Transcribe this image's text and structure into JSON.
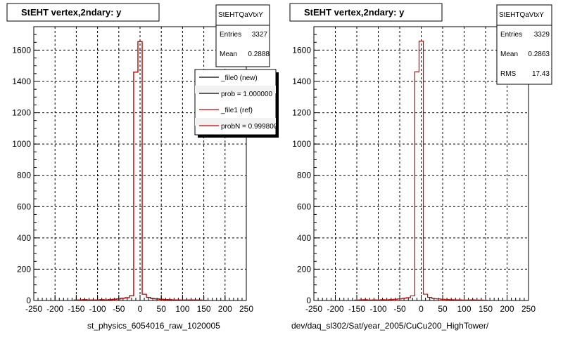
{
  "chart_data": [
    {
      "type": "histogram",
      "title": "StEHT  vertex,2ndary: y",
      "xlabel": "st_physics_6054016_raw_1020005",
      "ylabel": "",
      "xlim": [
        -250,
        250
      ],
      "ylim": [
        0,
        1750
      ],
      "xticks": [
        -250,
        -200,
        -150,
        -100,
        -50,
        0,
        50,
        100,
        150,
        200,
        250
      ],
      "yticks": [
        0,
        200,
        400,
        600,
        800,
        1000,
        1200,
        1400,
        1600
      ],
      "grid": true,
      "stats": {
        "name": "StEHTQaVtxY",
        "entries_label": "Entries",
        "entries": "3327",
        "mean_label": "Mean",
        "mean": "0.2888"
      },
      "legend": {
        "placement": "top-right",
        "entries": [
          {
            "label": "_file0 (new)",
            "color": "#000000"
          },
          {
            "label": "prob = 1.000000",
            "color": "#000000"
          },
          {
            "label": "_file1 (ref)",
            "color": "#cc0000"
          },
          {
            "label": "probN = 0.999800",
            "color": "#cc0000"
          }
        ]
      },
      "series": [
        {
          "name": "_file0 (new)",
          "color": "#000000",
          "x": [
            -150,
            -140,
            -130,
            -120,
            -110,
            -100,
            -90,
            -80,
            -70,
            -60,
            -50,
            -40,
            -30,
            -20,
            -10,
            0,
            10,
            20,
            30,
            40,
            50,
            60,
            70,
            80,
            90,
            100,
            110,
            120,
            130,
            140,
            150
          ],
          "y": [
            3,
            4,
            5,
            3,
            4,
            3,
            5,
            4,
            6,
            8,
            10,
            14,
            18,
            30,
            1460,
            1655,
            40,
            20,
            12,
            10,
            8,
            6,
            5,
            4,
            4,
            3,
            3,
            4,
            3,
            3,
            2
          ]
        },
        {
          "name": "_file1 (ref)",
          "color": "#cc0000",
          "x": [
            -150,
            -140,
            -130,
            -120,
            -110,
            -100,
            -90,
            -80,
            -70,
            -60,
            -50,
            -40,
            -30,
            -20,
            -10,
            0,
            10,
            20,
            30,
            40,
            50,
            60,
            70,
            80,
            90,
            100,
            110,
            120,
            130,
            140,
            150
          ],
          "y": [
            3,
            4,
            5,
            3,
            4,
            3,
            5,
            4,
            6,
            8,
            10,
            14,
            18,
            30,
            1460,
            1655,
            40,
            20,
            12,
            10,
            8,
            6,
            5,
            4,
            4,
            3,
            3,
            4,
            3,
            3,
            2
          ]
        }
      ]
    },
    {
      "type": "histogram",
      "title": "StEHT  vertex,2ndary: y",
      "xlabel": "dev/daq_sl302/Sat/year_2005/CuCu200_HighTower/",
      "ylabel": "",
      "xlim": [
        -250,
        250
      ],
      "ylim": [
        0,
        1750
      ],
      "xticks": [
        -250,
        -200,
        -150,
        -100,
        -50,
        0,
        50,
        100,
        150,
        200,
        250
      ],
      "yticks": [
        0,
        200,
        400,
        600,
        800,
        1000,
        1200,
        1400,
        1600
      ],
      "grid": true,
      "stats": {
        "name": "StEHTQaVtxY",
        "entries_label": "Entries",
        "entries": "3329",
        "mean_label": "Mean",
        "mean": "0.2863",
        "rms_label": "RMS",
        "rms": "17.43"
      },
      "series": [
        {
          "name": "",
          "color": "#cc0000",
          "x": [
            -150,
            -140,
            -130,
            -120,
            -110,
            -100,
            -90,
            -80,
            -70,
            -60,
            -50,
            -40,
            -30,
            -20,
            -10,
            0,
            10,
            20,
            30,
            40,
            50,
            60,
            70,
            80,
            90,
            100,
            110,
            120,
            130,
            140,
            150
          ],
          "y": [
            3,
            4,
            5,
            3,
            4,
            3,
            5,
            4,
            6,
            8,
            10,
            14,
            18,
            30,
            1462,
            1658,
            40,
            20,
            12,
            10,
            8,
            6,
            5,
            4,
            4,
            3,
            3,
            4,
            3,
            3,
            2
          ]
        }
      ]
    }
  ]
}
